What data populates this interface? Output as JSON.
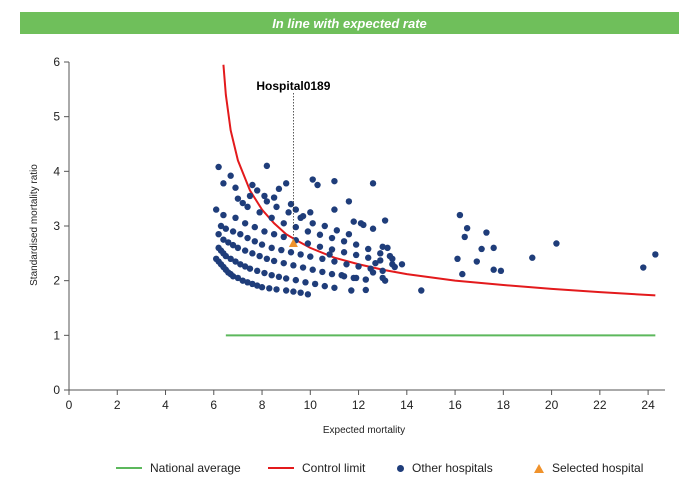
{
  "banner": {
    "text": "In line with expected rate"
  },
  "colors": {
    "banner_bg": "#6fbf5b",
    "national": "#5cb85c",
    "control": "#e31a1c",
    "others": "#1f3d7a",
    "selected": "#f0922b"
  },
  "chart_data": {
    "type": "scatter",
    "title": "",
    "xlabel": "Expected mortality",
    "ylabel": "Standardised mortality ratio",
    "xlim": [
      0,
      24.7
    ],
    "ylim": [
      0,
      6
    ],
    "xticks": [
      0,
      2,
      4,
      6,
      8,
      10,
      12,
      14,
      16,
      18,
      20,
      22,
      24
    ],
    "yticks": [
      0,
      1,
      2,
      3,
      4,
      5,
      6
    ],
    "grid": false,
    "legend_position": "bottom",
    "annotation": {
      "label": "Hospital0189",
      "x": 9.3,
      "y": 2.68
    },
    "series": [
      {
        "name": "National average",
        "kind": "line",
        "x": [
          6.5,
          24.3
        ],
        "y": [
          1,
          1
        ]
      },
      {
        "name": "Control limit",
        "kind": "line",
        "x": [
          6.4,
          6.5,
          6.7,
          7.0,
          7.5,
          8.0,
          8.5,
          9.0,
          9.5,
          10.0,
          11.0,
          12.0,
          13.0,
          14.0,
          16.0,
          18.0,
          20.0,
          22.0,
          24.3
        ],
        "y": [
          5.95,
          5.4,
          4.75,
          4.2,
          3.65,
          3.3,
          3.05,
          2.85,
          2.72,
          2.6,
          2.42,
          2.3,
          2.2,
          2.12,
          2.0,
          1.92,
          1.85,
          1.79,
          1.73
        ]
      },
      {
        "name": "Other hospitals",
        "kind": "scatter",
        "points": [
          [
            6.1,
            2.4
          ],
          [
            6.2,
            2.35
          ],
          [
            6.3,
            2.3
          ],
          [
            6.4,
            2.25
          ],
          [
            6.5,
            2.2
          ],
          [
            6.6,
            2.15
          ],
          [
            6.7,
            2.12
          ],
          [
            6.8,
            2.08
          ],
          [
            7.0,
            2.05
          ],
          [
            7.2,
            2.0
          ],
          [
            7.4,
            1.97
          ],
          [
            7.6,
            1.94
          ],
          [
            7.8,
            1.91
          ],
          [
            8.0,
            1.88
          ],
          [
            8.3,
            1.86
          ],
          [
            8.6,
            1.84
          ],
          [
            9.0,
            1.82
          ],
          [
            9.3,
            1.8
          ],
          [
            9.6,
            1.78
          ],
          [
            9.9,
            1.75
          ],
          [
            6.2,
            2.6
          ],
          [
            6.3,
            2.55
          ],
          [
            6.4,
            2.5
          ],
          [
            6.5,
            2.45
          ],
          [
            6.7,
            2.4
          ],
          [
            6.9,
            2.35
          ],
          [
            7.1,
            2.3
          ],
          [
            7.3,
            2.26
          ],
          [
            7.5,
            2.22
          ],
          [
            7.8,
            2.18
          ],
          [
            8.1,
            2.14
          ],
          [
            8.4,
            2.1
          ],
          [
            8.7,
            2.07
          ],
          [
            9.0,
            2.04
          ],
          [
            9.4,
            2.01
          ],
          [
            9.8,
            1.97
          ],
          [
            10.2,
            1.94
          ],
          [
            10.6,
            1.9
          ],
          [
            11.0,
            1.87
          ],
          [
            6.2,
            2.85
          ],
          [
            6.4,
            2.75
          ],
          [
            6.6,
            2.7
          ],
          [
            6.8,
            2.65
          ],
          [
            7.0,
            2.6
          ],
          [
            7.3,
            2.55
          ],
          [
            7.6,
            2.5
          ],
          [
            7.9,
            2.45
          ],
          [
            8.2,
            2.4
          ],
          [
            8.5,
            2.36
          ],
          [
            8.9,
            2.32
          ],
          [
            9.3,
            2.28
          ],
          [
            9.7,
            2.24
          ],
          [
            10.1,
            2.2
          ],
          [
            10.5,
            2.16
          ],
          [
            10.9,
            2.12
          ],
          [
            11.4,
            2.08
          ],
          [
            11.9,
            2.05
          ],
          [
            6.3,
            3.0
          ],
          [
            6.5,
            2.95
          ],
          [
            6.8,
            2.9
          ],
          [
            7.1,
            2.85
          ],
          [
            7.4,
            2.78
          ],
          [
            7.7,
            2.72
          ],
          [
            8.0,
            2.66
          ],
          [
            8.4,
            2.6
          ],
          [
            8.8,
            2.56
          ],
          [
            9.2,
            2.52
          ],
          [
            9.6,
            2.48
          ],
          [
            10.0,
            2.44
          ],
          [
            10.5,
            2.4
          ],
          [
            11.0,
            2.35
          ],
          [
            11.5,
            2.3
          ],
          [
            12.0,
            2.26
          ],
          [
            12.5,
            2.22
          ],
          [
            13.0,
            2.18
          ],
          [
            6.1,
            3.3
          ],
          [
            6.4,
            3.2
          ],
          [
            6.9,
            3.15
          ],
          [
            7.3,
            3.05
          ],
          [
            7.7,
            2.98
          ],
          [
            8.1,
            2.9
          ],
          [
            8.5,
            2.85
          ],
          [
            8.9,
            2.8
          ],
          [
            9.4,
            2.74
          ],
          [
            9.9,
            2.68
          ],
          [
            10.4,
            2.62
          ],
          [
            10.9,
            2.57
          ],
          [
            11.4,
            2.52
          ],
          [
            11.9,
            2.47
          ],
          [
            12.4,
            2.42
          ],
          [
            12.9,
            2.37
          ],
          [
            13.4,
            2.3
          ],
          [
            7.0,
            3.5
          ],
          [
            7.4,
            3.35
          ],
          [
            7.9,
            3.25
          ],
          [
            8.4,
            3.15
          ],
          [
            8.9,
            3.05
          ],
          [
            9.4,
            2.98
          ],
          [
            9.9,
            2.9
          ],
          [
            10.4,
            2.84
          ],
          [
            10.9,
            2.78
          ],
          [
            11.4,
            2.72
          ],
          [
            11.9,
            2.66
          ],
          [
            12.4,
            2.58
          ],
          [
            12.9,
            2.5
          ],
          [
            13.4,
            2.4
          ],
          [
            7.6,
            3.75
          ],
          [
            8.1,
            3.55
          ],
          [
            8.6,
            3.35
          ],
          [
            9.1,
            3.25
          ],
          [
            9.6,
            3.15
          ],
          [
            10.1,
            3.05
          ],
          [
            10.6,
            3.0
          ],
          [
            11.1,
            2.92
          ],
          [
            11.6,
            2.85
          ],
          [
            12.1,
            3.05
          ],
          [
            12.6,
            2.95
          ],
          [
            13.1,
            3.1
          ],
          [
            13.2,
            2.6
          ],
          [
            13.0,
            2.62
          ],
          [
            6.2,
            4.08
          ],
          [
            6.4,
            3.78
          ],
          [
            6.7,
            3.92
          ],
          [
            6.9,
            3.7
          ],
          [
            7.2,
            3.42
          ],
          [
            7.5,
            3.55
          ],
          [
            7.8,
            3.65
          ],
          [
            8.2,
            3.45
          ],
          [
            8.5,
            3.52
          ],
          [
            8.7,
            3.68
          ],
          [
            9.0,
            3.78
          ],
          [
            9.2,
            3.4
          ],
          [
            9.4,
            3.3
          ],
          [
            9.7,
            3.18
          ],
          [
            10.0,
            3.25
          ],
          [
            8.2,
            4.1
          ],
          [
            10.1,
            3.85
          ],
          [
            10.3,
            3.75
          ],
          [
            11.0,
            3.82
          ],
          [
            11.6,
            3.45
          ],
          [
            11.0,
            3.3
          ],
          [
            12.6,
            3.78
          ],
          [
            11.8,
            3.08
          ],
          [
            12.2,
            3.02
          ],
          [
            13.3,
            2.45
          ],
          [
            12.7,
            2.32
          ],
          [
            10.8,
            2.48
          ],
          [
            11.3,
            2.1
          ],
          [
            11.8,
            2.05
          ],
          [
            12.3,
            2.02
          ],
          [
            12.6,
            2.15
          ],
          [
            13.0,
            2.05
          ],
          [
            13.5,
            2.25
          ],
          [
            13.8,
            2.3
          ],
          [
            11.7,
            1.82
          ],
          [
            12.3,
            1.83
          ],
          [
            13.1,
            2.0
          ],
          [
            14.6,
            1.82
          ],
          [
            16.2,
            3.2
          ],
          [
            16.5,
            2.96
          ],
          [
            16.4,
            2.8
          ],
          [
            17.3,
            2.88
          ],
          [
            17.6,
            2.6
          ],
          [
            16.1,
            2.4
          ],
          [
            16.3,
            2.12
          ],
          [
            16.9,
            2.35
          ],
          [
            17.1,
            2.58
          ],
          [
            17.6,
            2.2
          ],
          [
            17.9,
            2.18
          ],
          [
            19.2,
            2.42
          ],
          [
            20.2,
            2.68
          ],
          [
            23.8,
            2.24
          ],
          [
            24.3,
            2.48
          ]
        ]
      },
      {
        "name": "Selected hospital",
        "kind": "scatter",
        "points": [
          [
            9.3,
            2.68
          ]
        ]
      }
    ]
  }
}
